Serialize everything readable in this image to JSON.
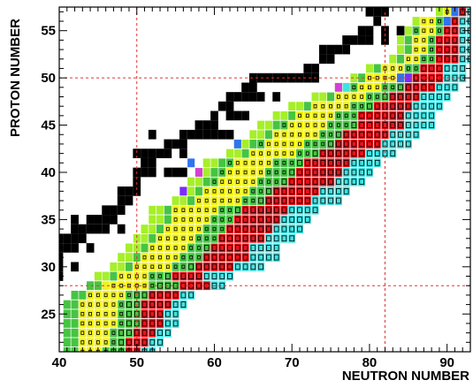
{
  "chart_data": {
    "type": "heatmap",
    "title": "",
    "xlabel": "NEUTRON NUMBER",
    "ylabel": "PROTON NUMBER",
    "xlim": [
      40,
      93
    ],
    "ylim": [
      21,
      57.5
    ],
    "x_ticks": [
      40,
      50,
      60,
      70,
      80,
      90
    ],
    "y_ticks": [
      25,
      30,
      35,
      40,
      45,
      50,
      55
    ],
    "x_tick_labels": [
      "40",
      "50",
      "60",
      "70",
      "80",
      "90"
    ],
    "y_tick_labels": [
      "25",
      "30",
      "35",
      "40",
      "45",
      "50",
      "55"
    ],
    "magic_lines": {
      "neutron": [
        50,
        82
      ],
      "proton": [
        28,
        50
      ],
      "style": "dashed",
      "color": "#e33333"
    },
    "colors": {
      "stable": "#000000",
      "red": "#e8121a",
      "green": "#46c443",
      "lime": "#a6ef2a",
      "yellow": "#f2f21a",
      "cyan": "#40e2e2",
      "blue": "#2e74f0",
      "purple": "#7a2cff",
      "magenta": "#d63fd6"
    },
    "stable_isotopes": [
      [
        80,
        57
      ],
      [
        81,
        57
      ],
      [
        82,
        57
      ],
      [
        81,
        56
      ],
      [
        79,
        55
      ],
      [
        80,
        55
      ],
      [
        82,
        55
      ],
      [
        84,
        55
      ],
      [
        77,
        54
      ],
      [
        78,
        54
      ],
      [
        79,
        54
      ],
      [
        80,
        54
      ],
      [
        82,
        54
      ],
      [
        74,
        53
      ],
      [
        75,
        53
      ],
      [
        76,
        53
      ],
      [
        77,
        53
      ],
      [
        74,
        52
      ],
      [
        75,
        52
      ],
      [
        72,
        51
      ],
      [
        73,
        51
      ],
      [
        65,
        50
      ],
      [
        66,
        50
      ],
      [
        67,
        50
      ],
      [
        68,
        50
      ],
      [
        69,
        50
      ],
      [
        70,
        50
      ],
      [
        71,
        50
      ],
      [
        72,
        50
      ],
      [
        73,
        50
      ],
      [
        64,
        49
      ],
      [
        65,
        49
      ],
      [
        62,
        48
      ],
      [
        63,
        48
      ],
      [
        64,
        48
      ],
      [
        65,
        48
      ],
      [
        66,
        48
      ],
      [
        68,
        48
      ],
      [
        61,
        47
      ],
      [
        62,
        47
      ],
      [
        60,
        46
      ],
      [
        62,
        46
      ],
      [
        63,
        46
      ],
      [
        64,
        46
      ],
      [
        60,
        45
      ],
      [
        59,
        45
      ],
      [
        58,
        45
      ],
      [
        56,
        44
      ],
      [
        57,
        44
      ],
      [
        58,
        44
      ],
      [
        59,
        44
      ],
      [
        60,
        44
      ],
      [
        61,
        44
      ],
      [
        62,
        44
      ],
      [
        52,
        44
      ],
      [
        54,
        43
      ],
      [
        55,
        43
      ],
      [
        56,
        43
      ],
      [
        50,
        42
      ],
      [
        51,
        42
      ],
      [
        52,
        42
      ],
      [
        53,
        42
      ],
      [
        54,
        42
      ],
      [
        56,
        42
      ],
      [
        51,
        41
      ],
      [
        52,
        41
      ],
      [
        50,
        40
      ],
      [
        51,
        40
      ],
      [
        52,
        40
      ],
      [
        54,
        40
      ],
      [
        55,
        40
      ],
      [
        56,
        40
      ],
      [
        50,
        39
      ],
      [
        48,
        38
      ],
      [
        49,
        38
      ],
      [
        50,
        38
      ],
      [
        48,
        37
      ],
      [
        49,
        37
      ],
      [
        46,
        36
      ],
      [
        47,
        36
      ],
      [
        48,
        36
      ],
      [
        42,
        35
      ],
      [
        44,
        35
      ],
      [
        45,
        35
      ],
      [
        46,
        35
      ],
      [
        47,
        35
      ],
      [
        42,
        34
      ],
      [
        43,
        34
      ],
      [
        44,
        34
      ],
      [
        45,
        34
      ],
      [
        46,
        34
      ],
      [
        48,
        34
      ],
      [
        40,
        33
      ],
      [
        41,
        33
      ],
      [
        42,
        33
      ],
      [
        43,
        33
      ],
      [
        40,
        32
      ],
      [
        41,
        32
      ],
      [
        42,
        32
      ],
      [
        44,
        32
      ],
      [
        39,
        31
      ],
      [
        40,
        31
      ],
      [
        38,
        30
      ],
      [
        39,
        30
      ],
      [
        40,
        30
      ],
      [
        42,
        30
      ],
      [
        39,
        29
      ],
      [
        40,
        29
      ]
    ],
    "measured_bands": [
      {
        "z": 21,
        "n": [
          41,
          52
        ]
      },
      {
        "z": 22,
        "n": [
          41,
          53
        ]
      },
      {
        "z": 23,
        "n": [
          41,
          54
        ]
      },
      {
        "z": 24,
        "n": [
          41,
          55
        ]
      },
      {
        "z": 25,
        "n": [
          41,
          55
        ]
      },
      {
        "z": 26,
        "n": [
          41,
          56
        ]
      },
      {
        "z": 27,
        "n": [
          42,
          57
        ]
      },
      {
        "z": 28,
        "n": [
          44,
          61
        ]
      },
      {
        "z": 29,
        "n": [
          45,
          62
        ]
      },
      {
        "z": 30,
        "n": [
          47,
          66
        ]
      },
      {
        "z": 31,
        "n": [
          48,
          68
        ]
      },
      {
        "z": 32,
        "n": [
          49,
          68
        ]
      },
      {
        "z": 33,
        "n": [
          50,
          70
        ]
      },
      {
        "z": 34,
        "n": [
          51,
          71
        ]
      },
      {
        "z": 35,
        "n": [
          52,
          72
        ]
      },
      {
        "z": 36,
        "n": [
          52,
          73
        ]
      },
      {
        "z": 37,
        "n": [
          55,
          76
        ]
      },
      {
        "z": 38,
        "n": [
          56,
          77
        ]
      },
      {
        "z": 39,
        "n": [
          57,
          79
        ]
      },
      {
        "z": 40,
        "n": [
          58,
          80
        ]
      },
      {
        "z": 41,
        "n": [
          59,
          81
        ]
      },
      {
        "z": 42,
        "n": [
          62,
          83
        ]
      },
      {
        "z": 43,
        "n": [
          63,
          85
        ]
      },
      {
        "z": 44,
        "n": [
          65,
          86
        ]
      },
      {
        "z": 45,
        "n": [
          66,
          88
        ]
      },
      {
        "z": 46,
        "n": [
          68,
          88
        ]
      },
      {
        "z": 47,
        "n": [
          70,
          89
        ]
      },
      {
        "z": 48,
        "n": [
          73,
          90
        ]
      },
      {
        "z": 49,
        "n": [
          76,
          91
        ]
      },
      {
        "z": 50,
        "n": [
          78,
          92
        ]
      },
      {
        "z": 51,
        "n": [
          80,
          92
        ]
      },
      {
        "z": 52,
        "n": [
          83,
          93
        ]
      },
      {
        "z": 53,
        "n": [
          84,
          93
        ]
      },
      {
        "z": 54,
        "n": [
          84,
          93
        ]
      },
      {
        "z": 55,
        "n": [
          85,
          93
        ]
      },
      {
        "z": 56,
        "n": [
          86,
          93
        ]
      },
      {
        "z": 57,
        "n": [
          89,
          93
        ]
      }
    ]
  }
}
